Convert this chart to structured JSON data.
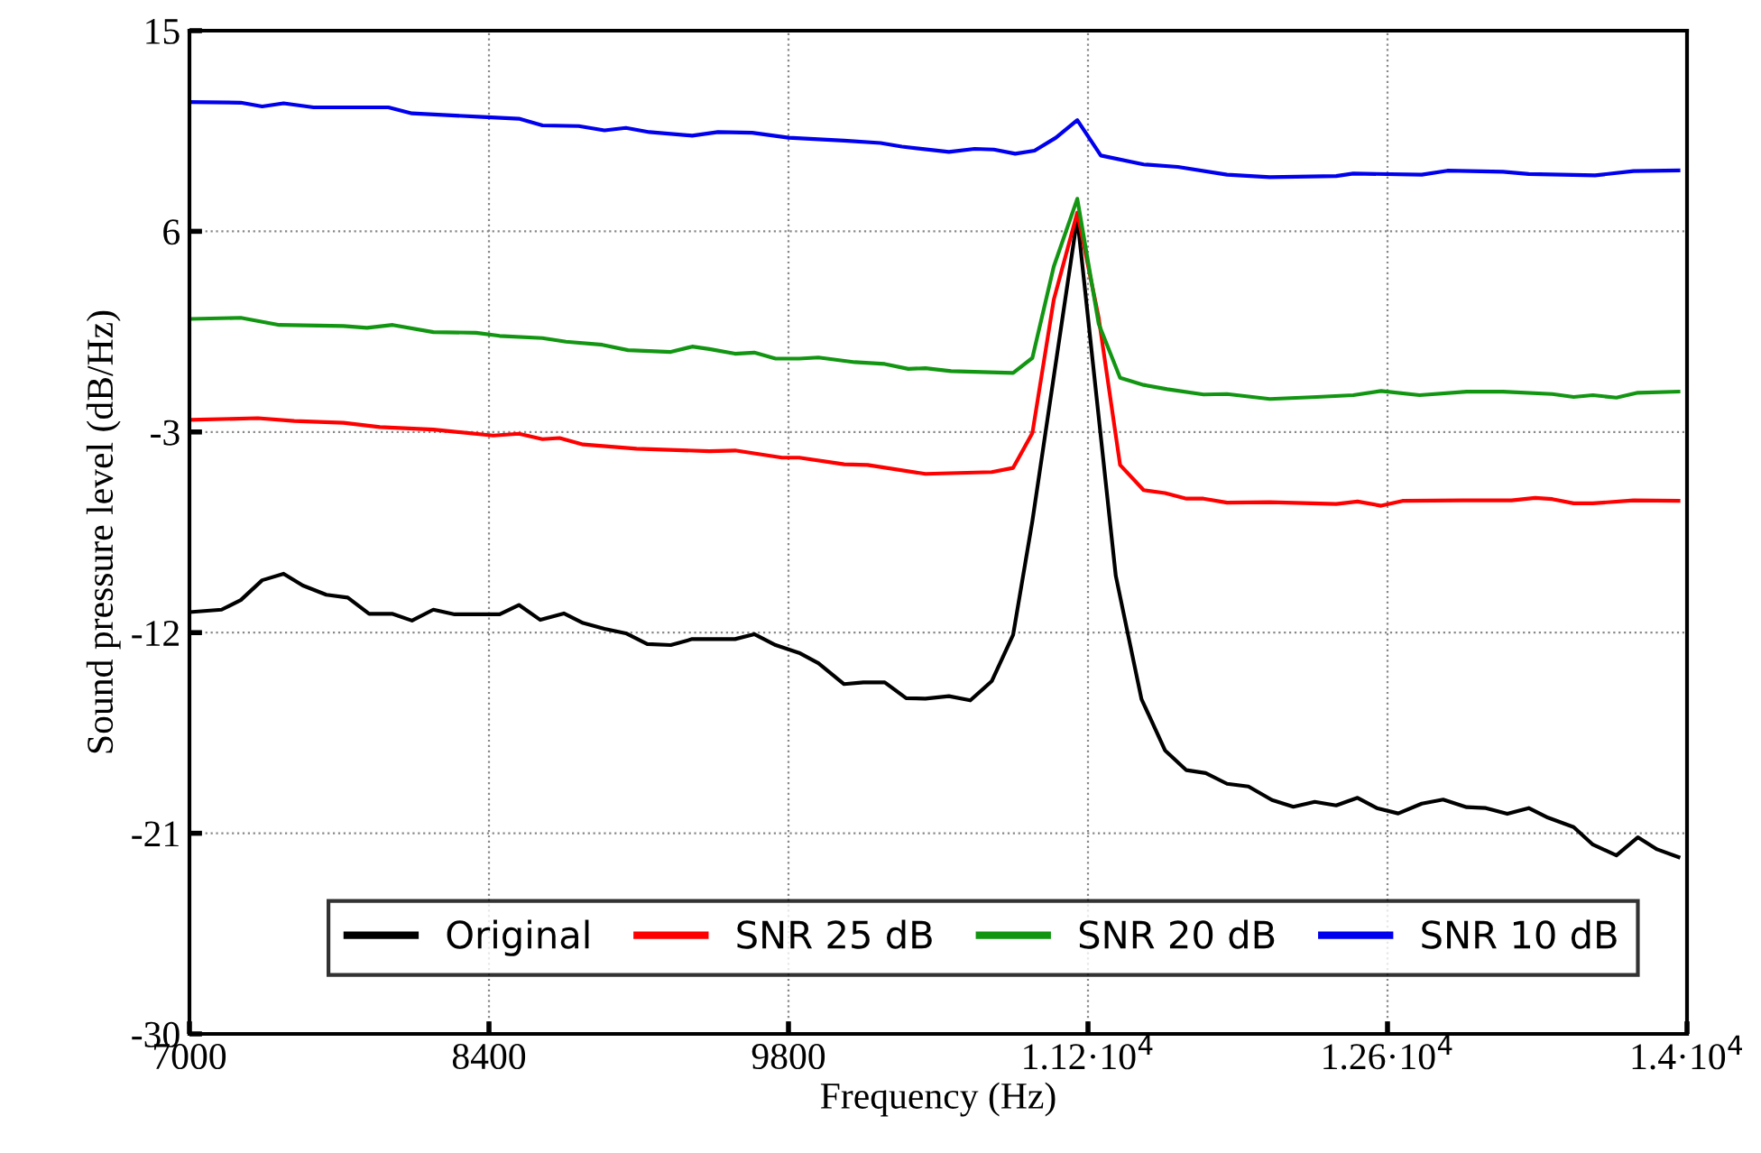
{
  "chart_data": {
    "type": "line",
    "xlabel": "Frequency (Hz)",
    "ylabel": "Sound pressure level (dB/Hz)",
    "xlim": [
      7000,
      14000
    ],
    "ylim": [
      -30,
      15
    ],
    "xticks": [
      7000,
      8400,
      9800,
      {
        "value": 11200,
        "label": "1.12·10$^{4}$"
      },
      {
        "value": 12600,
        "label": "1.26·10$^{4}$"
      },
      {
        "value": 14000,
        "label": "1.4·10$^{4}$"
      }
    ],
    "yticks": [
      -30,
      -21,
      -12,
      -3,
      6,
      15
    ],
    "grid": true,
    "legend": "bottom",
    "line_style": "solid",
    "marker": "none",
    "series": [
      {
        "name": "Original",
        "color": "#000000",
        "x": [
          7000,
          7150,
          7240,
          7340,
          7440,
          7530,
          7640,
          7740,
          7840,
          7950,
          8040,
          8140,
          8240,
          8450,
          8540,
          8640,
          8750,
          8840,
          8940,
          9040,
          9140,
          9250,
          9350,
          9550,
          9640,
          9740,
          9850,
          9940,
          10060,
          10150,
          10250,
          10350,
          10440,
          10550,
          10650,
          10750,
          10850,
          10940,
          11150,
          11330,
          11450,
          11560,
          11660,
          11750,
          11850,
          11950,
          12060,
          12160,
          12260,
          12360,
          12460,
          12550,
          12650,
          12760,
          12860,
          12970,
          13060,
          13160,
          13260,
          13350,
          13470,
          13560,
          13670,
          13770,
          13860,
          13960
        ],
        "values": [
          -11.08,
          -10.97,
          -10.54,
          -9.65,
          -9.36,
          -9.89,
          -10.3,
          -10.43,
          -11.16,
          -11.16,
          -11.46,
          -10.97,
          -11.18,
          -11.18,
          -10.76,
          -11.43,
          -11.14,
          -11.57,
          -11.83,
          -12.03,
          -12.51,
          -12.56,
          -12.29,
          -12.29,
          -12.07,
          -12.56,
          -12.91,
          -13.37,
          -14.31,
          -14.23,
          -14.23,
          -14.94,
          -14.96,
          -14.85,
          -15.04,
          -14.18,
          -12.1,
          -7.0,
          6.6,
          -9.46,
          -14.98,
          -17.28,
          -18.17,
          -18.3,
          -18.78,
          -18.9,
          -19.51,
          -19.81,
          -19.59,
          -19.75,
          -19.41,
          -19.87,
          -20.11,
          -19.67,
          -19.49,
          -19.83,
          -19.87,
          -20.13,
          -19.87,
          -20.3,
          -20.72,
          -21.51,
          -21.99,
          -21.18,
          -21.72,
          -22.07
        ]
      },
      {
        "name": "SNR 25 dB",
        "color": "#ff0000",
        "x": [
          7000,
          7320,
          7490,
          7720,
          7890,
          8140,
          8420,
          8540,
          8650,
          8730,
          8840,
          9090,
          9430,
          9550,
          9770,
          9850,
          10060,
          10170,
          10440,
          10750,
          10850,
          10940,
          11040,
          11150,
          11250,
          11350,
          11460,
          11560,
          11660,
          11740,
          11850,
          12050,
          12360,
          12460,
          12570,
          12670,
          12950,
          13180,
          13290,
          13370,
          13470,
          13560,
          13750,
          13960
        ],
        "values": [
          -2.46,
          -2.38,
          -2.51,
          -2.59,
          -2.78,
          -2.89,
          -3.16,
          -3.08,
          -3.32,
          -3.27,
          -3.56,
          -3.75,
          -3.86,
          -3.83,
          -4.15,
          -4.15,
          -4.45,
          -4.48,
          -4.88,
          -4.8,
          -4.61,
          -3.05,
          2.93,
          6.84,
          2.12,
          -4.48,
          -5.61,
          -5.74,
          -5.99,
          -5.99,
          -6.17,
          -6.15,
          -6.23,
          -6.12,
          -6.31,
          -6.09,
          -6.07,
          -6.07,
          -5.96,
          -6.01,
          -6.2,
          -6.2,
          -6.07,
          -6.09
        ]
      },
      {
        "name": "SNR 20 dB",
        "color": "#129612",
        "x": [
          7000,
          7240,
          7420,
          7720,
          7830,
          7950,
          8140,
          8340,
          8450,
          8650,
          8760,
          8930,
          9050,
          9250,
          9350,
          9430,
          9550,
          9640,
          9740,
          9850,
          9940,
          10110,
          10250,
          10360,
          10440,
          10560,
          10850,
          10940,
          11040,
          11150,
          11250,
          11350,
          11460,
          11570,
          11740,
          11850,
          12050,
          12270,
          12440,
          12570,
          12750,
          12970,
          13140,
          13370,
          13470,
          13560,
          13670,
          13770,
          13960
        ],
        "values": [
          2.07,
          2.12,
          1.8,
          1.75,
          1.67,
          1.8,
          1.48,
          1.45,
          1.31,
          1.21,
          1.05,
          0.91,
          0.67,
          0.59,
          0.83,
          0.72,
          0.51,
          0.56,
          0.29,
          0.29,
          0.34,
          0.13,
          0.05,
          -0.17,
          -0.14,
          -0.27,
          -0.35,
          0.32,
          4.42,
          7.46,
          1.85,
          -0.57,
          -0.89,
          -1.08,
          -1.32,
          -1.3,
          -1.52,
          -1.43,
          -1.35,
          -1.16,
          -1.35,
          -1.19,
          -1.19,
          -1.3,
          -1.43,
          -1.35,
          -1.46,
          -1.24,
          -1.19
        ]
      },
      {
        "name": "SNR 10 dB",
        "color": "#0000ee",
        "x": [
          7000,
          7240,
          7340,
          7440,
          7580,
          7930,
          8040,
          8370,
          8540,
          8650,
          8820,
          8940,
          9040,
          9150,
          9350,
          9470,
          9630,
          9800,
          10060,
          10230,
          10330,
          10550,
          10670,
          10760,
          10860,
          10950,
          11050,
          11150,
          11260,
          11460,
          11620,
          11850,
          12050,
          12360,
          12440,
          12760,
          12880,
          13140,
          13260,
          13570,
          13750,
          13960
        ],
        "values": [
          11.8,
          11.77,
          11.6,
          11.74,
          11.56,
          11.56,
          11.29,
          11.13,
          11.05,
          10.75,
          10.72,
          10.53,
          10.64,
          10.45,
          10.29,
          10.45,
          10.42,
          10.2,
          10.07,
          9.96,
          9.8,
          9.56,
          9.7,
          9.67,
          9.48,
          9.62,
          10.2,
          10.99,
          9.4,
          9.0,
          8.89,
          8.54,
          8.43,
          8.48,
          8.59,
          8.54,
          8.72,
          8.67,
          8.57,
          8.51,
          8.7,
          8.73
        ]
      }
    ]
  }
}
